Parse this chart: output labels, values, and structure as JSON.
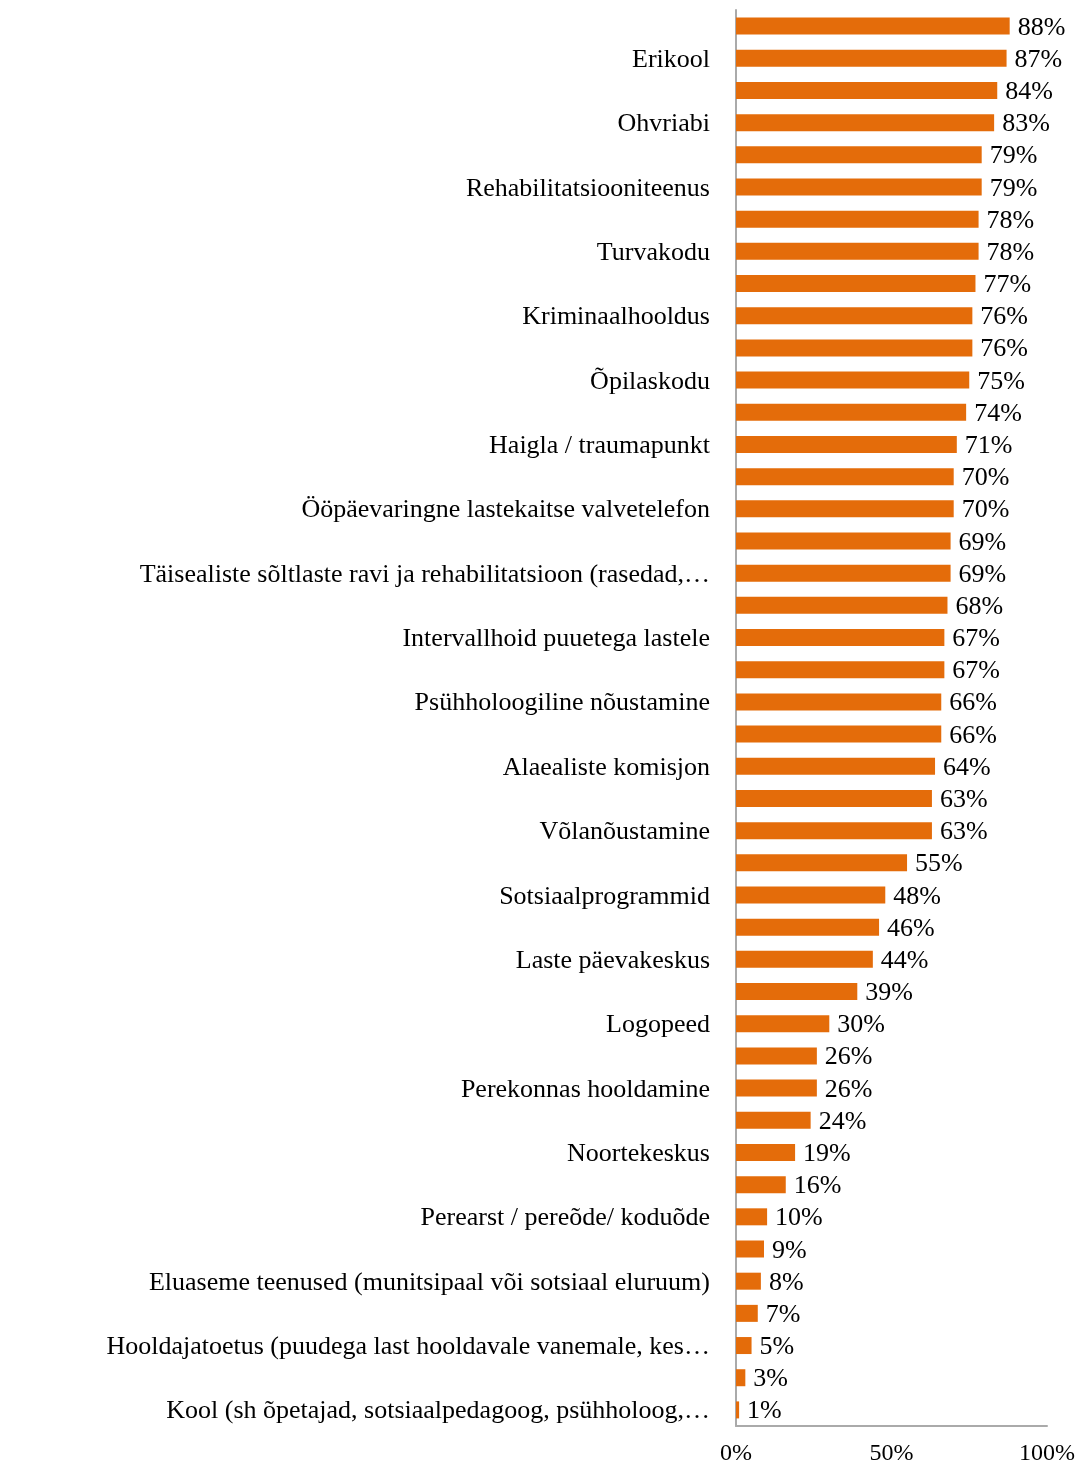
{
  "chart_data": {
    "type": "bar",
    "orientation": "horizontal",
    "color": "#e46c0a",
    "categories": [
      null,
      "Erikool",
      null,
      "Ohvriabi",
      null,
      "Rehabilitatsiooniteenus",
      null,
      "Turvakodu",
      null,
      "Kriminaalhooldus",
      null,
      "Õpilaskodu",
      null,
      "Haigla / traumapunkt",
      null,
      "Ööpäevaringne lastekaitse valvetelefon",
      null,
      "Täisealiste sõltlaste ravi ja rehabilitatsioon (rasedad,…",
      null,
      "Intervallhoid puuetega lastele",
      null,
      "Psühholoogiline nõustamine",
      null,
      "Alaealiste komisjon",
      null,
      "Võlanõustamine",
      null,
      "Sotsiaalprogrammid",
      null,
      "Laste päevakeskus",
      null,
      "Logopeed",
      null,
      "Perekonnas hooldamine",
      null,
      "Noortekeskus",
      null,
      "Perearst / pereõde/ koduõde",
      null,
      "Eluaseme teenused (munitsipaal või sotsiaal eluruum)",
      null,
      "Hooldajatoetus (puudega last hooldavale vanemale, kes…",
      null,
      "Kool (sh õpetajad, sotsiaalpedagoog, psühholoog,…"
    ],
    "values": [
      88,
      87,
      84,
      83,
      79,
      79,
      78,
      78,
      77,
      76,
      76,
      75,
      74,
      71,
      70,
      70,
      69,
      69,
      68,
      67,
      67,
      66,
      66,
      64,
      63,
      63,
      55,
      48,
      46,
      44,
      39,
      30,
      26,
      26,
      24,
      19,
      16,
      10,
      9,
      8,
      7,
      5,
      3,
      1
    ],
    "value_labels": [
      "88%",
      "87%",
      "84%",
      "83%",
      "79%",
      "79%",
      "78%",
      "78%",
      "77%",
      "76%",
      "76%",
      "75%",
      "74%",
      "71%",
      "70%",
      "70%",
      "69%",
      "69%",
      "68%",
      "67%",
      "67%",
      "66%",
      "66%",
      "64%",
      "63%",
      "63%",
      "55%",
      "48%",
      "46%",
      "44%",
      "39%",
      "30%",
      "26%",
      "26%",
      "24%",
      "19%",
      "16%",
      "10%",
      "9%",
      "8%",
      "7%",
      "5%",
      "3%",
      "1%"
    ],
    "xlim": [
      0,
      100
    ],
    "xticks": [
      {
        "value": 0,
        "label": "0%"
      },
      {
        "value": 50,
        "label": "50%"
      },
      {
        "value": 100,
        "label": "100%"
      }
    ],
    "grid": false
  }
}
